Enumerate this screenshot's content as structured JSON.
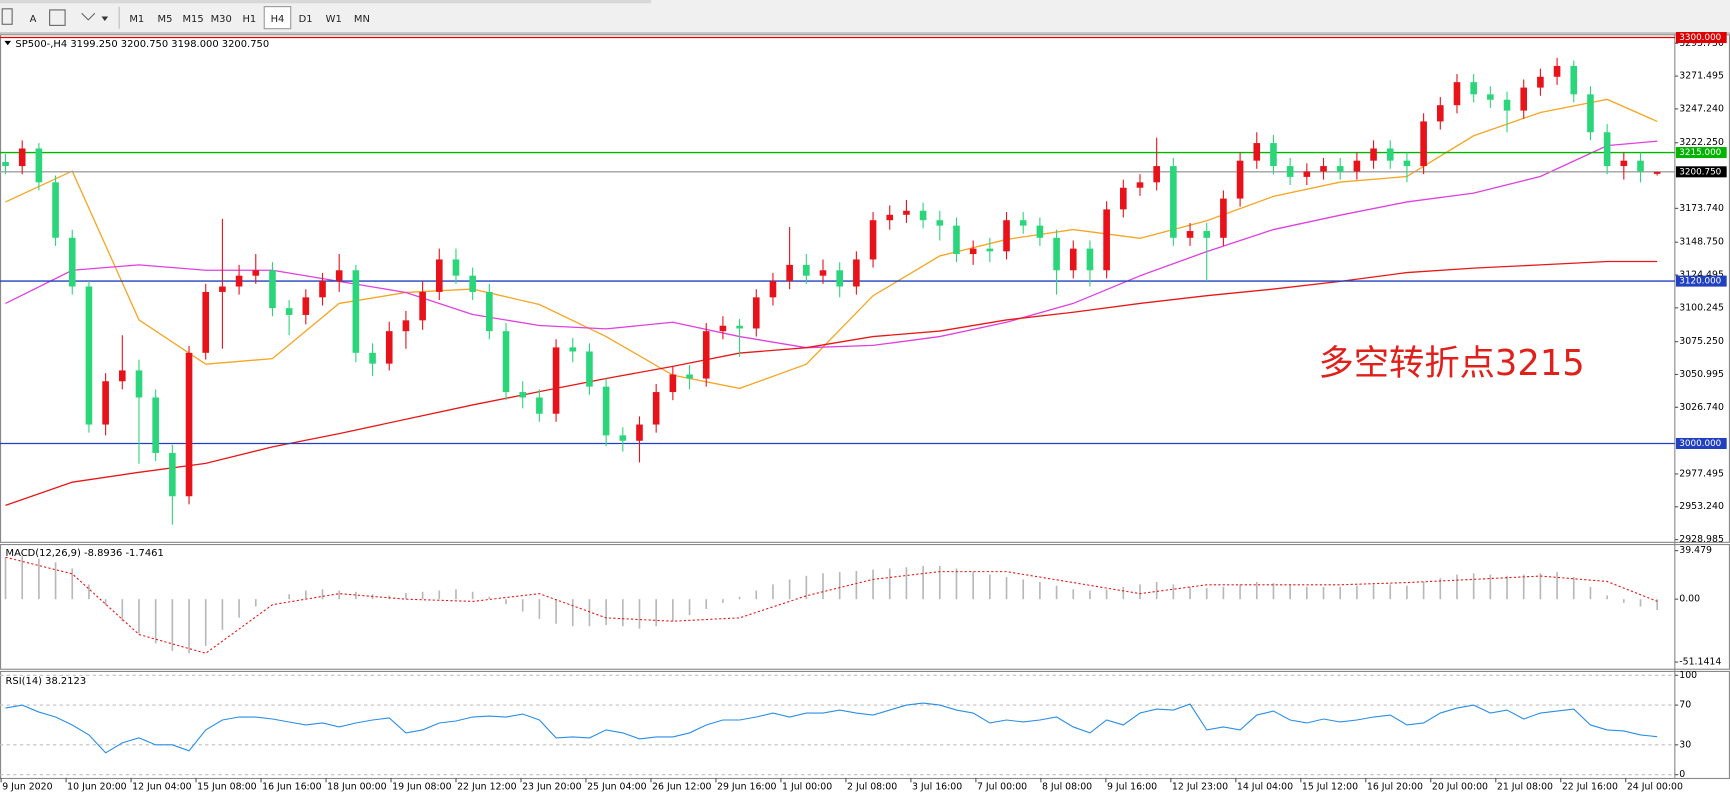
{
  "toolbar": {
    "text_tool": "A",
    "timeframes": [
      "M1",
      "M5",
      "M15",
      "M30",
      "H1",
      "H4",
      "D1",
      "W1",
      "MN"
    ],
    "active_index": 5
  },
  "chart_data": [
    {
      "type": "candlestick",
      "header": "SP500-,H4  3199.250 3200.750 3198.000 3200.750",
      "annotation": "多空转折点3215",
      "up_color": "#e8121b",
      "down_color": "#2bd67b",
      "ylim": [
        2927.35,
        3302.45
      ],
      "yticks": [
        {
          "value": 3295.75,
          "label": "3295.750"
        },
        3271.495,
        {
          "value": 3247.24,
          "label": "3247.240"
        },
        {
          "value": 3222.25,
          "label": "3222.250"
        },
        {
          "value": 3173.74,
          "label": "3173.740"
        },
        {
          "value": 3148.75,
          "label": "3148.750"
        },
        3124.495,
        3100.245,
        {
          "value": 3075.25,
          "label": "3075.250"
        },
        3050.995,
        {
          "value": 3026.74,
          "label": "3026.740"
        },
        2977.495,
        {
          "value": 2953.24,
          "label": "2953.240"
        },
        2928.985
      ],
      "levels": [
        {
          "value": 3300,
          "label": "3300.000",
          "color": "#e00000",
          "label_bg": "#e00000"
        },
        {
          "value": 3215,
          "label": "3215.000",
          "color": "#00b400",
          "label_bg": "#00b400"
        },
        {
          "value": 3200.75,
          "label": "3200.750",
          "color": "#a0a0a0",
          "label_bg": "#000000"
        },
        {
          "value": 3120,
          "label": "3120.000",
          "color": "#2040c0",
          "label_bg": "#2040c0"
        },
        {
          "value": 3000,
          "label": "3000.000",
          "color": "#2040c0",
          "label_bg": "#2040c0"
        }
      ],
      "x_labels": [
        "9 Jun 2020",
        "10 Jun 20:00",
        "12 Jun 04:00",
        "15 Jun 08:00",
        "16 Jun 16:00",
        "18 Jun 00:00",
        "19 Jun 08:00",
        "22 Jun 12:00",
        "23 Jun 20:00",
        "25 Jun 04:00",
        "26 Jun 12:00",
        "29 Jun 16:00",
        "1 Jul 00:00",
        "2 Jul 08:00",
        "3 Jul 16:00",
        "7 Jul 00:00",
        "8 Jul 08:00",
        "9 Jul 16:00",
        "12 Jul 23:00",
        "14 Jul 04:00",
        "15 Jul 12:00",
        "16 Jul 20:00",
        "20 Jul 00:00",
        "21 Jul 08:00",
        "22 Jul 16:00",
        "24 Jul 00:00"
      ],
      "open": [
        3208,
        3205,
        3218,
        3193,
        3152,
        3116,
        3014,
        3046,
        3054,
        3034,
        2993,
        2961,
        3067,
        3112,
        3116,
        3124,
        3128,
        3100,
        3095,
        3108,
        3120,
        3128,
        3067,
        3059,
        3083,
        3091,
        3112,
        3136,
        3124,
        3112,
        3083,
        3038,
        3034,
        3022,
        3071,
        3068,
        3042,
        3006,
        3002,
        3014,
        3038,
        3051,
        3048,
        3083,
        3087,
        3085,
        3108,
        3120,
        3132,
        3124,
        3128,
        3116,
        3136,
        3165,
        3169,
        3172,
        3165,
        3161,
        3140,
        3144,
        3142,
        3165,
        3161,
        3152,
        3128,
        3144,
        3128,
        3173,
        3189,
        3193,
        3205,
        3152,
        3157,
        3152,
        3181,
        3209,
        3222,
        3205,
        3197,
        3201,
        3205,
        3201,
        3209,
        3218,
        3209,
        3205,
        3238,
        3250,
        3267,
        3258,
        3254,
        3246,
        3263,
        3271,
        3279,
        3258,
        3230,
        3205,
        3209,
        3199.25
      ],
      "high": [
        3214,
        3224,
        3222,
        3198,
        3158,
        3120,
        3052,
        3080,
        3062,
        3040,
        2999,
        3072,
        3118,
        3166,
        3132,
        3140,
        3134,
        3106,
        3114,
        3126,
        3140,
        3132,
        3074,
        3090,
        3098,
        3120,
        3144,
        3144,
        3130,
        3118,
        3089,
        3046,
        3040,
        3077,
        3078,
        3074,
        3048,
        3012,
        3020,
        3044,
        3057,
        3058,
        3089,
        3094,
        3092,
        3114,
        3126,
        3160,
        3140,
        3136,
        3134,
        3142,
        3171,
        3176,
        3180,
        3178,
        3172,
        3167,
        3150,
        3152,
        3171,
        3171,
        3167,
        3158,
        3150,
        3150,
        3179,
        3195,
        3199,
        3226,
        3211,
        3163,
        3163,
        3187,
        3215,
        3230,
        3228,
        3211,
        3207,
        3211,
        3211,
        3215,
        3224,
        3224,
        3215,
        3244,
        3256,
        3273,
        3273,
        3264,
        3260,
        3269,
        3277,
        3285,
        3283,
        3264,
        3236,
        3215,
        3215,
        3200.75
      ],
      "low": [
        3199,
        3199,
        3187,
        3146,
        3110,
        3008,
        3006,
        3040,
        2985,
        2987,
        2940,
        2955,
        3062,
        3070,
        3110,
        3118,
        3094,
        3080,
        3088,
        3102,
        3112,
        3060,
        3050,
        3054,
        3070,
        3084,
        3106,
        3118,
        3106,
        3077,
        3032,
        3026,
        3016,
        3016,
        3060,
        3036,
        2998,
        2994,
        2986,
        3008,
        3032,
        3040,
        3042,
        3077,
        3064,
        3079,
        3102,
        3114,
        3118,
        3118,
        3108,
        3110,
        3130,
        3158,
        3163,
        3159,
        3150,
        3134,
        3132,
        3134,
        3136,
        3155,
        3146,
        3110,
        3122,
        3116,
        3122,
        3167,
        3183,
        3187,
        3146,
        3146,
        3120,
        3146,
        3175,
        3203,
        3199,
        3191,
        3191,
        3195,
        3195,
        3195,
        3203,
        3203,
        3193,
        3199,
        3232,
        3244,
        3252,
        3248,
        3230,
        3240,
        3257,
        3265,
        3252,
        3224,
        3199,
        3195,
        3193,
        3198
      ],
      "close": [
        3205,
        3218,
        3193,
        3152,
        3116,
        3014,
        3046,
        3054,
        3034,
        2993,
        2961,
        3067,
        3112,
        3116,
        3124,
        3128,
        3100,
        3095,
        3108,
        3120,
        3128,
        3067,
        3059,
        3083,
        3091,
        3112,
        3136,
        3124,
        3112,
        3083,
        3038,
        3034,
        3022,
        3071,
        3068,
        3042,
        3006,
        3002,
        3014,
        3038,
        3051,
        3048,
        3083,
        3087,
        3085,
        3108,
        3120,
        3132,
        3124,
        3128,
        3116,
        3136,
        3165,
        3169,
        3172,
        3165,
        3161,
        3140,
        3144,
        3142,
        3165,
        3161,
        3152,
        3128,
        3144,
        3128,
        3173,
        3189,
        3193,
        3205,
        3152,
        3157,
        3152,
        3181,
        3209,
        3222,
        3205,
        3197,
        3201,
        3205,
        3201,
        3209,
        3218,
        3209,
        3205,
        3238,
        3250,
        3267,
        3258,
        3254,
        3246,
        3263,
        3271,
        3279,
        3258,
        3230,
        3205,
        3209,
        3201,
        3200.75
      ],
      "moving_averages": [
        {
          "color": "#f5a623",
          "x": [
            0,
            4,
            8,
            12,
            16,
            20,
            24,
            28,
            32,
            36,
            40,
            44,
            48,
            52,
            56,
            60,
            64,
            68,
            72,
            76,
            80,
            84,
            88,
            92,
            96,
            99
          ],
          "values": [
            3178.5,
            3201.3,
            3091.3,
            3058.6,
            3062.7,
            3103.5,
            3111.6,
            3114.1,
            3102.7,
            3079.0,
            3050.5,
            3040.7,
            3058.6,
            3109.2,
            3138.6,
            3150.8,
            3158.1,
            3151.6,
            3164.6,
            3182.6,
            3193.2,
            3197.3,
            3227.4,
            3244.6,
            3254.3,
            3238.0
          ]
        },
        {
          "color": "#e040e0",
          "x": [
            0,
            4,
            8,
            12,
            16,
            20,
            24,
            28,
            32,
            36,
            40,
            44,
            48,
            52,
            56,
            60,
            64,
            68,
            72,
            76,
            80,
            84,
            88,
            92,
            96,
            99
          ],
          "values": [
            3103.5,
            3128.0,
            3132.0,
            3128.0,
            3128.0,
            3119.8,
            3111.6,
            3095.3,
            3087.2,
            3084.7,
            3089.6,
            3079.0,
            3070.8,
            3072.5,
            3079.0,
            3089.6,
            3103.5,
            3123.9,
            3141.8,
            3158.1,
            3168.7,
            3178.5,
            3185.0,
            3197.3,
            3220.1,
            3223.4
          ]
        },
        {
          "color": "#e81818",
          "x": [
            0,
            4,
            8,
            12,
            16,
            20,
            24,
            28,
            32,
            36,
            40,
            44,
            48,
            52,
            56,
            60,
            64,
            68,
            72,
            76,
            80,
            84,
            88,
            92,
            96,
            99
          ],
          "values": [
            2954.3,
            2971.4,
            2978.7,
            2985.3,
            2997.5,
            3007.3,
            3017.9,
            3028.5,
            3038.3,
            3048.0,
            3057.0,
            3066.8,
            3070.8,
            3079.0,
            3083.1,
            3091.3,
            3097.0,
            3103.5,
            3109.2,
            3114.1,
            3119.8,
            3126.3,
            3129.6,
            3132.0,
            3134.5,
            3134.5
          ]
        }
      ]
    },
    {
      "type": "macd",
      "title": "MACD(12,26,9) -8.8936 -1.7461",
      "ylim": [
        -57.42,
        44.86
      ],
      "yticks": [
        39.479,
        {
          "value": 0,
          "label": "0.00"
        },
        -51.1414
      ],
      "histogram_color": "#b8b8b8",
      "values": [
        34,
        35,
        33,
        30,
        25,
        12,
        -5,
        -18,
        -28,
        -36,
        -42,
        -44,
        -38,
        -25,
        -15,
        -6,
        0,
        4,
        7,
        8,
        7,
        6,
        4,
        3,
        5,
        6,
        7,
        8,
        6,
        2,
        -4,
        -10,
        -16,
        -20,
        -22,
        -22,
        -21,
        -22,
        -24,
        -22,
        -18,
        -13,
        -8,
        -3,
        2,
        7,
        12,
        16,
        19,
        21,
        22,
        23,
        24,
        25,
        26,
        27,
        27,
        25,
        22,
        20,
        18,
        16,
        14,
        11,
        8,
        7,
        8,
        10,
        12,
        14,
        12,
        10,
        9,
        10,
        12,
        14,
        13,
        11,
        10,
        10,
        10,
        11,
        12,
        12,
        11,
        14,
        17,
        20,
        21,
        20,
        19,
        20,
        21,
        22,
        18,
        10,
        3,
        -3,
        -6,
        -8.8936
      ],
      "signal": {
        "color": "#e81818",
        "x": [
          0,
          4,
          8,
          12,
          16,
          20,
          24,
          28,
          32,
          36,
          40,
          44,
          48,
          52,
          56,
          60,
          64,
          68,
          72,
          76,
          80,
          84,
          88,
          92,
          96,
          99
        ],
        "values": [
          34.1,
          20.6,
          -28.7,
          -44.0,
          -4.5,
          4.5,
          0,
          -1.8,
          4.5,
          -15.2,
          -17.9,
          -15.2,
          2.7,
          16.1,
          22.4,
          22.4,
          13.5,
          4.5,
          11.7,
          11.7,
          11.7,
          13.5,
          16.1,
          18.8,
          14.4,
          -1.7461
        ]
      }
    },
    {
      "type": "line",
      "title": "RSI(14) 38.2123",
      "ylim": [
        -3.3,
        103.3
      ],
      "yticks": [
        100,
        70,
        30,
        0
      ],
      "grid": true,
      "color": "#2a8ee8",
      "values": [
        67,
        70,
        63,
        58,
        50,
        40,
        22,
        32,
        37,
        30,
        30,
        24,
        45,
        55,
        58,
        58,
        56,
        53,
        50,
        52,
        48,
        52,
        55,
        57,
        42,
        45,
        52,
        54,
        58,
        59,
        58,
        61,
        55,
        37,
        38,
        37,
        45,
        42,
        36,
        38,
        38,
        42,
        50,
        55,
        55,
        58,
        62,
        58,
        62,
        62,
        65,
        62,
        60,
        65,
        70,
        72,
        70,
        65,
        62,
        52,
        55,
        53,
        55,
        58,
        48,
        42,
        55,
        50,
        62,
        66,
        65,
        71,
        45,
        48,
        45,
        60,
        64,
        55,
        52,
        56,
        53,
        55,
        58,
        60,
        50,
        52,
        62,
        67,
        70,
        62,
        65,
        56,
        62,
        64,
        66,
        50,
        45,
        44,
        40,
        38.2123
      ]
    }
  ]
}
